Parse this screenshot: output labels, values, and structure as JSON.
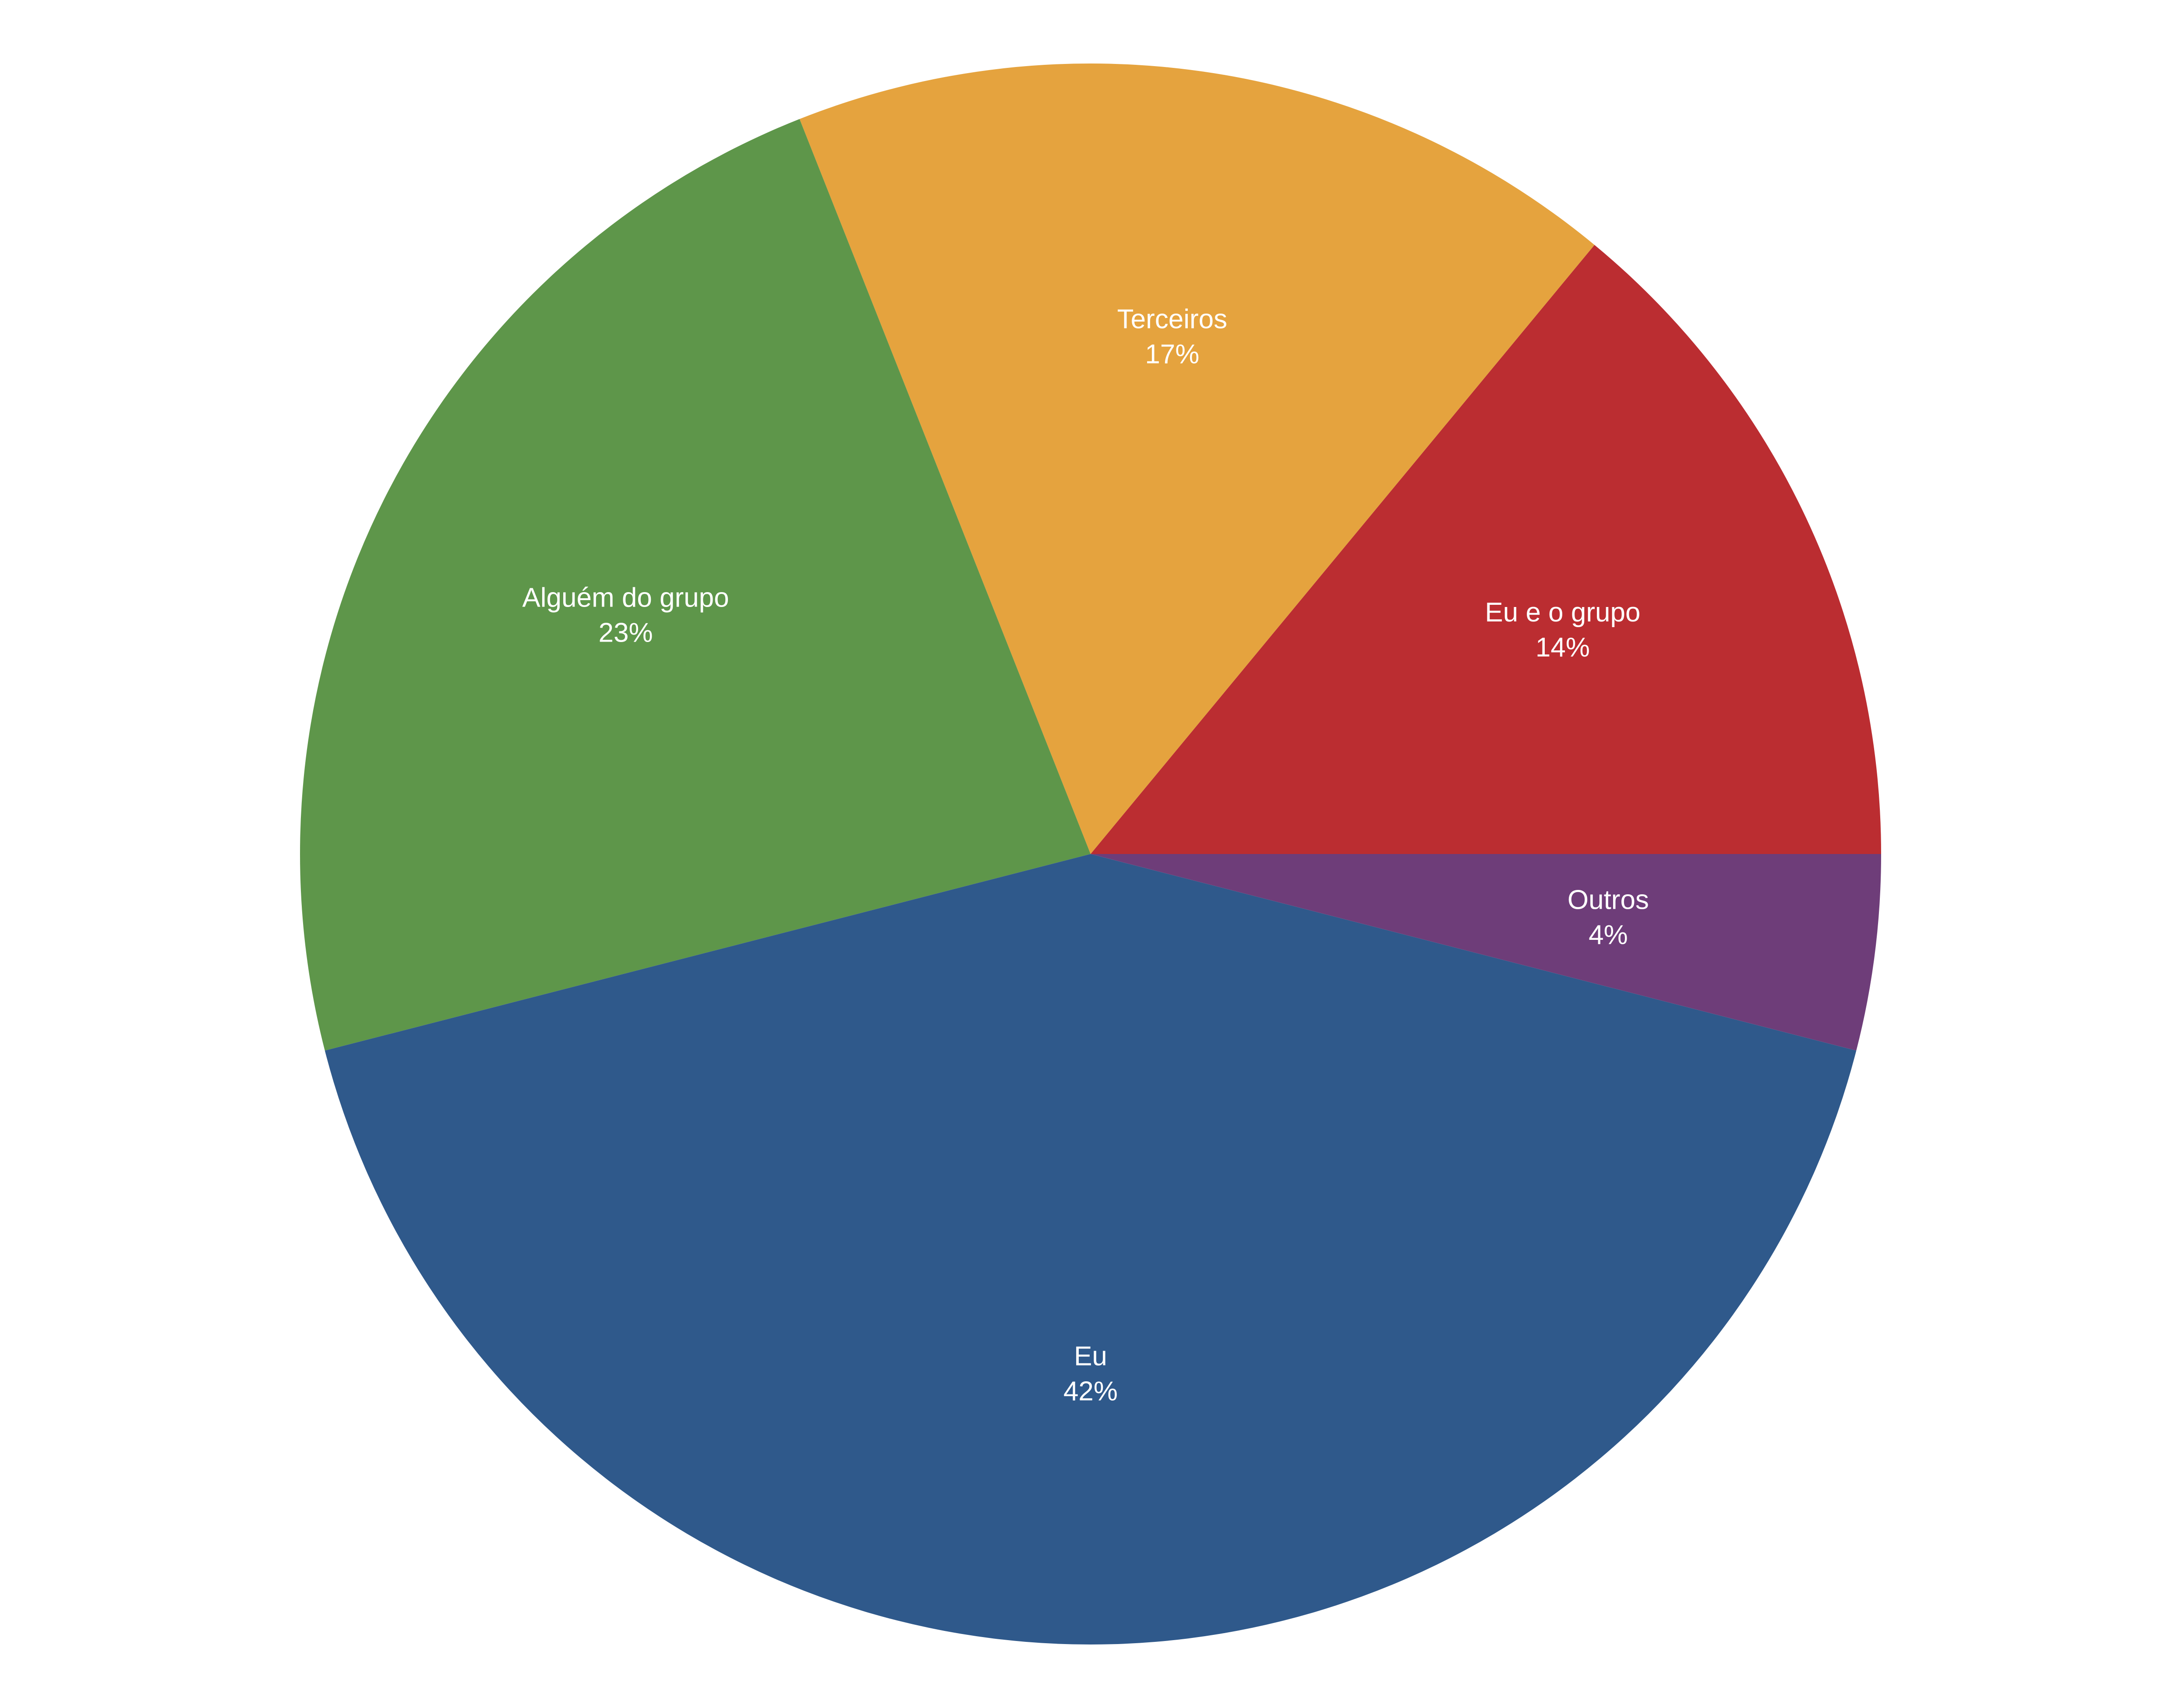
{
  "chart_data": {
    "type": "pie",
    "categories": [
      "Eu e o grupo",
      "Terceiros",
      "Alguém do grupo",
      "Eu",
      "Outros"
    ],
    "values": [
      14,
      17,
      23,
      42,
      4
    ],
    "value_labels": [
      "14%",
      "17%",
      "23%",
      "42%",
      "4%"
    ],
    "colors": [
      "#bb2d31",
      "#e5a33e",
      "#5e964a",
      "#2f598b",
      "#6e3d79"
    ]
  }
}
